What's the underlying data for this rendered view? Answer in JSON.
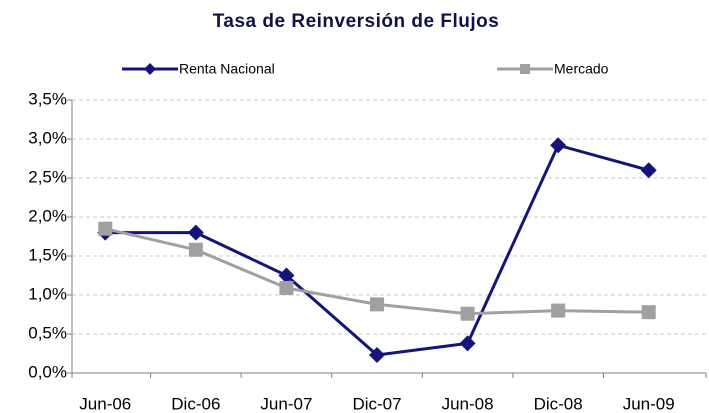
{
  "chart_data": {
    "type": "line",
    "title": "Tasa de Reinversión de Flujos",
    "categories": [
      "Jun-06",
      "Dic-06",
      "Jun-07",
      "Dic-07",
      "Jun-08",
      "Dic-08",
      "Jun-09"
    ],
    "series": [
      {
        "name": "Renta Nacional",
        "color": "#14147a",
        "marker": "diamond",
        "values": [
          1.8,
          1.8,
          1.25,
          0.23,
          0.38,
          2.92,
          2.6
        ]
      },
      {
        "name": "Mercado",
        "color": "#a0a0a0",
        "marker": "square",
        "values": [
          1.85,
          1.58,
          1.09,
          0.88,
          0.76,
          0.8,
          0.78
        ]
      }
    ],
    "ylim": [
      0,
      3.5
    ],
    "yticks": [
      {
        "value": 0,
        "label": "0,0%"
      },
      {
        "value": 0.5,
        "label": "0,5%"
      },
      {
        "value": 1,
        "label": "1,0%"
      },
      {
        "value": 1.5,
        "label": "1,5%"
      },
      {
        "value": 2,
        "label": "2,0%"
      },
      {
        "value": 2.5,
        "label": "2,5%"
      },
      {
        "value": 3,
        "label": "3,0%"
      },
      {
        "value": 3.5,
        "label": "3,5%"
      }
    ],
    "grid": true
  }
}
